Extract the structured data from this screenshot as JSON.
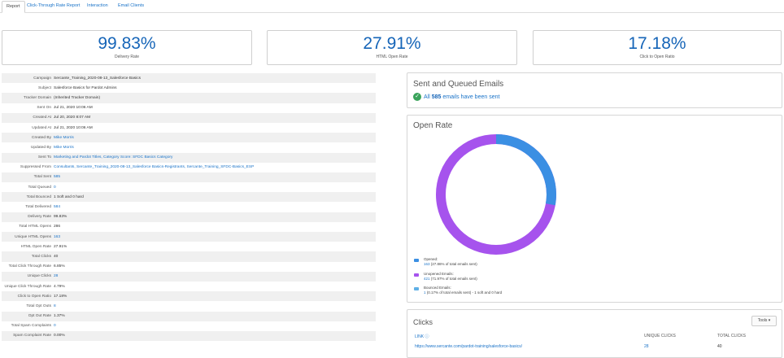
{
  "tabs": [
    {
      "label": "Report"
    },
    {
      "label": "Click-Through Rate Report"
    },
    {
      "label": "Interaction"
    },
    {
      "label": "Email Clients"
    }
  ],
  "kpis": [
    {
      "value": "99.83%",
      "label": "Delivery Rate"
    },
    {
      "value": "27.91%",
      "label": "HTML Open Rate"
    },
    {
      "value": "17.18%",
      "label": "Click to Open Ratio"
    }
  ],
  "details": [
    {
      "label": "Campaign",
      "value": "Sercante_Training_2020-08-13_Salesforce Basics"
    },
    {
      "label": "Subject",
      "value": "Salesforce Basics for Pardot Admins"
    },
    {
      "label": "Tracker Domain",
      "value": "(Inherited Tracker Domain)"
    },
    {
      "label": "Sent On",
      "value": "Jul 21, 2020 10:06 AM"
    },
    {
      "label": "Created At",
      "value": "Jul 20, 2020 8:07 AM"
    },
    {
      "label": "Updated At",
      "value": "Jul 21, 2020 10:06 AM"
    },
    {
      "label": "Created By",
      "value": "Mike Morris"
    },
    {
      "label": "Updated By",
      "value": "Mike Morris"
    },
    {
      "label": "Sent To",
      "value": "Marketing and Pardot Titles, Category Score: SFDC Basics Category"
    },
    {
      "label": "Suppressed From",
      "value": "Consultants, Sercante_Training_2020-08-13_Salesforce Basics-Registrants, Sercante_Training_SFDC-Basics_ESP"
    },
    {
      "label": "Total Sent",
      "value": "585"
    },
    {
      "label": "Total Queued",
      "value": "0"
    },
    {
      "label": "Total Bounced",
      "value": "1 Soft and 0 hard"
    },
    {
      "label": "Total Delivered",
      "value": "584"
    },
    {
      "label": "Delivery Rate",
      "value": "99.83%"
    },
    {
      "label": "Total HTML Opens",
      "value": "286"
    },
    {
      "label": "Unique HTML Opens",
      "value": "163"
    },
    {
      "label": "HTML Open Rate",
      "value": "27.91%"
    },
    {
      "label": "Total Clicks",
      "value": "40"
    },
    {
      "label": "Total Click Through Rate",
      "value": "6.85%"
    },
    {
      "label": "Unique Clicks",
      "value": "28"
    },
    {
      "label": "Unique Click Through Rate",
      "value": "4.79%"
    },
    {
      "label": "Click to Open Ratio",
      "value": "17.18%"
    },
    {
      "label": "Total Opt Outs",
      "value": "8"
    },
    {
      "label": "Opt Out Rate",
      "value": "1.37%"
    },
    {
      "label": "Total Spam Complaints",
      "value": "0"
    },
    {
      "label": "Spam Complaint Rate",
      "value": "0.00%"
    }
  ],
  "sent_panel": {
    "title": "Sent and Queued Emails",
    "text_pre": "All",
    "count": "585",
    "text_post": "emails have been sent"
  },
  "open_rate": {
    "title": "Open Rate",
    "opened_fraction": 0.2786,
    "legend": [
      {
        "name": "Opened:",
        "count": "163",
        "detail": "(27.86% of total emails sent)"
      },
      {
        "name": "Unopened Emails:",
        "count": "421",
        "detail": "(71.97% of total emails sent)"
      },
      {
        "name": "Bounced Emails:",
        "count": "1",
        "detail": "(0.17% of total emails sent) - 1 soft and 0 hard"
      }
    ],
    "colors": {
      "opened": "#3b8fe3",
      "unopened": "#a653ed",
      "bounced": "#5fb0e6"
    }
  },
  "clicks": {
    "title": "Clicks",
    "tools_label": "Tools ▾",
    "col_link": "LINK",
    "col_unique": "UNIQUE CLICKS",
    "col_total": "TOTAL CLICKS",
    "rows": [
      {
        "link": "https://www.sercante.com/pardot-training/salesforce-basics/",
        "unique": "28",
        "total": "40"
      }
    ]
  }
}
